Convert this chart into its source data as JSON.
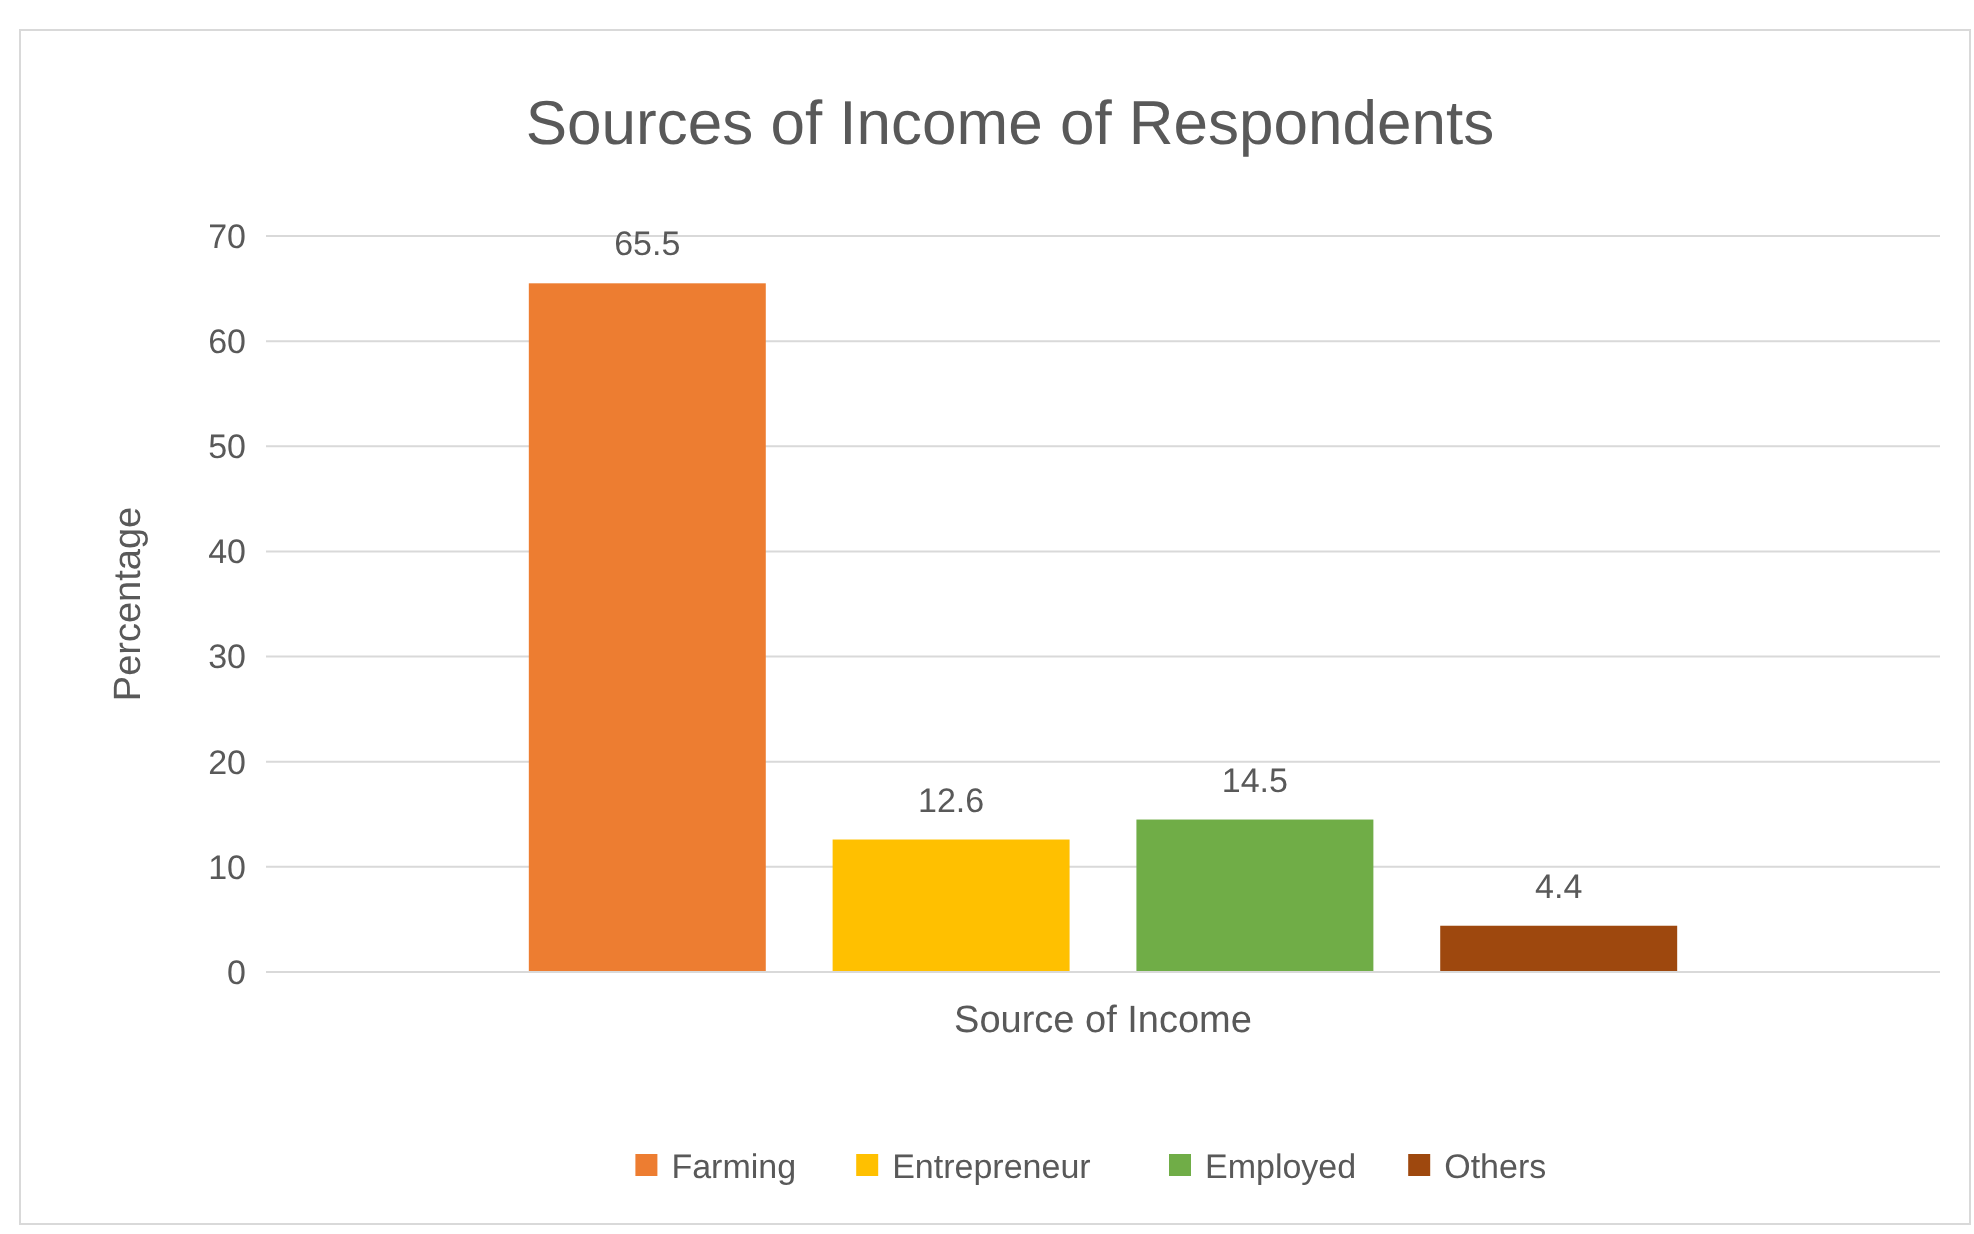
{
  "chart_data": {
    "type": "bar",
    "title": "Sources of Income of Respondents",
    "xlabel": "Source of Income",
    "ylabel": "Percentage",
    "categories": [
      null
    ],
    "series": [
      {
        "name": "Farming",
        "color": "#ed7d31",
        "values": [
          65.5
        ]
      },
      {
        "name": "Entrepreneur",
        "color": "#ffc000",
        "values": [
          12.6
        ]
      },
      {
        "name": "Employed",
        "color": "#70ad47",
        "values": [
          14.5
        ]
      },
      {
        "name": "Others",
        "color": "#9e480e",
        "values": [
          4.4
        ]
      }
    ],
    "ylim": [
      0,
      70
    ],
    "yticks": [
      0,
      10,
      20,
      30,
      40,
      50,
      60,
      70
    ],
    "grid": "y",
    "legend": "bottom",
    "data_labels": true
  }
}
